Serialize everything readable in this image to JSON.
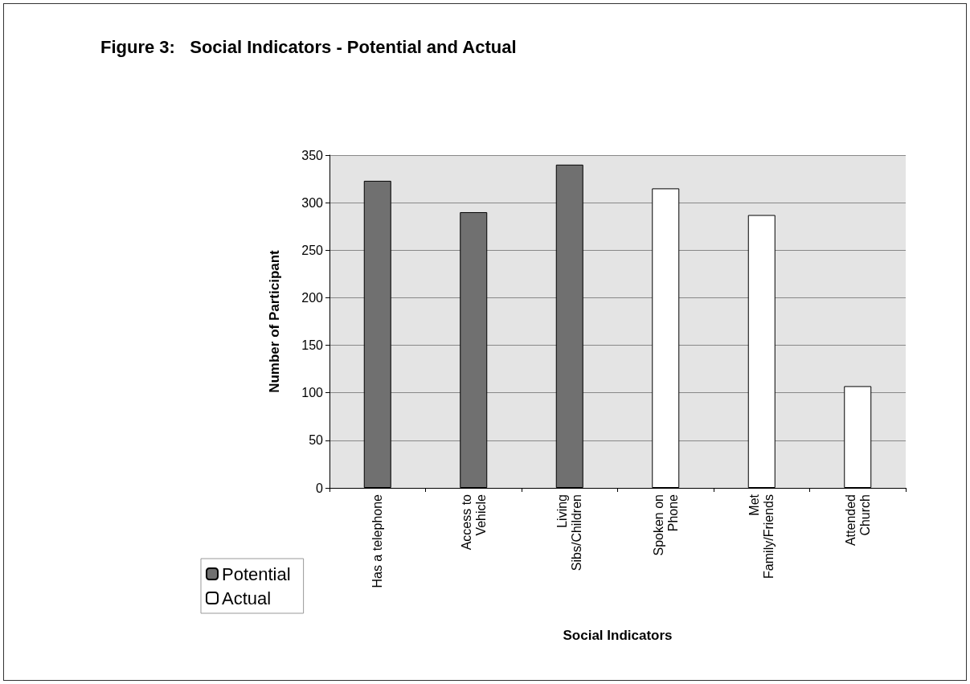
{
  "chart_data": {
    "type": "bar",
    "title": "Figure 3:   Social Indicators - Potential and Actual",
    "xlabel": "Social Indicators",
    "ylabel": "Number of Participant",
    "categories": [
      "Has a telephone",
      "Access to\nVehicle",
      "Living\nSibs/Children",
      "Spoken on\nPhone",
      "Met\nFamily/Friends",
      "Attended\nChurch"
    ],
    "series": [
      {
        "name": "Potential",
        "color": "#707070",
        "values": [
          323,
          290,
          340,
          null,
          null,
          null
        ]
      },
      {
        "name": "Actual",
        "color": "#ffffff",
        "values": [
          null,
          null,
          null,
          315,
          287,
          107
        ]
      }
    ],
    "ylim": [
      0,
      350
    ],
    "yticks": [
      0,
      50,
      100,
      150,
      200,
      250,
      300,
      350
    ],
    "grid": "y",
    "legend": "bottom left"
  }
}
